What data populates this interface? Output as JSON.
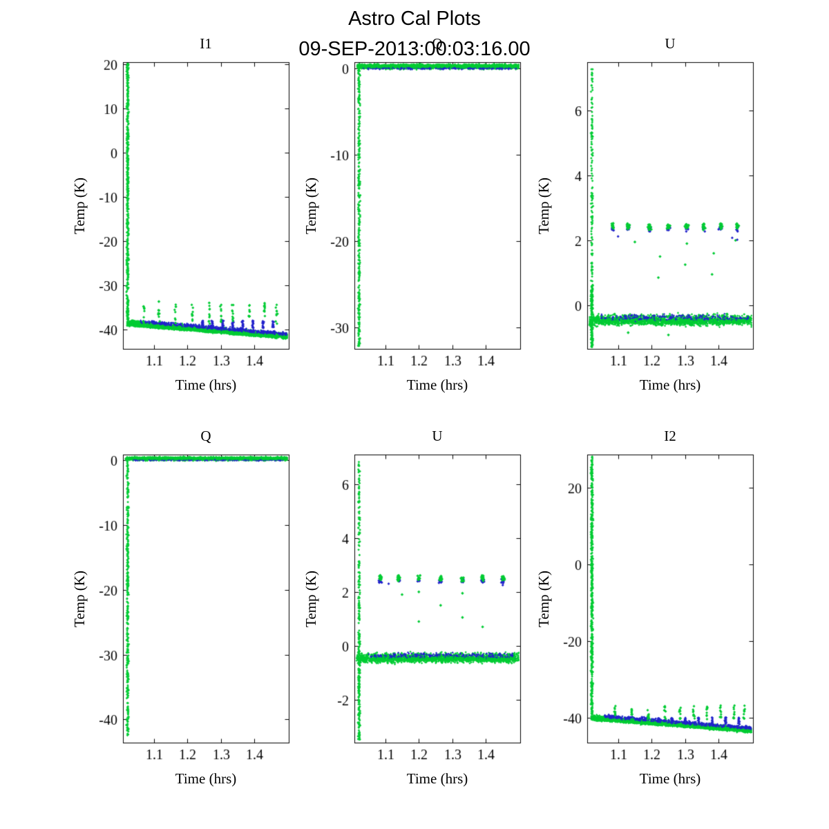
{
  "figure": {
    "title": "Astro Cal Plots",
    "subtitle": "09-SEP-2013:00:03:16.00",
    "background": "#ffffff",
    "colors": {
      "green": "#00cc33",
      "blue": "#2222cc",
      "axis": "#000000",
      "text": "#000000"
    }
  },
  "chart_data": [
    {
      "type": "scatter",
      "title": "I1",
      "xlabel": "Time (hrs)",
      "ylabel": "Temp (K)",
      "xlim": [
        1.008,
        1.502
      ],
      "ylim": [
        -44.3,
        20.5
      ],
      "xticks": [
        1.1,
        1.2,
        1.3,
        1.4
      ],
      "yticks": [
        20,
        10,
        0,
        -10,
        -20,
        -30,
        -40
      ],
      "legend": null,
      "grid": false,
      "features": [
        {
          "kind": "vstrip",
          "c": "g",
          "x": 1.022,
          "jx": 0.0045,
          "y0": -38.6,
          "y1": 20.4,
          "n": 520,
          "r": 1.8
        },
        {
          "kind": "slopeband",
          "c": "g",
          "x0": 1.02,
          "x1": 1.498,
          "ya": -38.4,
          "yb": -41.4,
          "t": 0.9,
          "n": 1500,
          "r": 1.6
        },
        {
          "kind": "slopeband",
          "c": "b",
          "x0": 1.06,
          "x1": 1.498,
          "ya": -38.1,
          "yb": -40.9,
          "t": 0.6,
          "n": 420,
          "r": 1.6
        },
        {
          "kind": "vclusters",
          "c": "b",
          "xs": [
            1.245,
            1.275,
            1.305,
            1.335,
            1.365,
            1.395,
            1.425,
            1.455
          ],
          "y0": -39.6,
          "y1": -37.9,
          "n": 18,
          "r": 1.8
        },
        {
          "kind": "vclusters",
          "c": "g",
          "xs": [
            1.07,
            1.115,
            1.165,
            1.215,
            1.265,
            1.3,
            1.335,
            1.385,
            1.43,
            1.465
          ],
          "y0": -38.6,
          "y1": -34.3,
          "n": 9,
          "r": 2.0
        },
        {
          "kind": "points",
          "c": "g",
          "pts": [
            [
              1.115,
              -33.6
            ],
            [
              1.265,
              -33.9
            ],
            [
              1.43,
              -34.0
            ]
          ],
          "r": 2.2
        },
        {
          "kind": "slopeband",
          "c": "g",
          "x0": 1.02,
          "x1": 1.498,
          "ya": -38.9,
          "yb": -41.8,
          "t": 0.35,
          "n": 700,
          "r": 1.6
        }
      ]
    },
    {
      "type": "scatter",
      "title": "Q",
      "xlabel": "Time (hrs)",
      "ylabel": "Temp (K)",
      "xlim": [
        1.008,
        1.502
      ],
      "ylim": [
        -32.5,
        0.7
      ],
      "xticks": [
        1.1,
        1.2,
        1.3,
        1.4
      ],
      "yticks": [
        0,
        -10,
        -20,
        -30
      ],
      "legend": null,
      "grid": false,
      "features": [
        {
          "kind": "hband",
          "c": "g",
          "x0": 1.016,
          "x1": 1.498,
          "y": 0.18,
          "t": 0.38,
          "n": 1700,
          "r": 1.6
        },
        {
          "kind": "hband",
          "c": "b",
          "x0": 1.03,
          "x1": 1.49,
          "y": 0.02,
          "t": 0.22,
          "n": 260,
          "r": 1.6
        },
        {
          "kind": "hband",
          "c": "g",
          "x0": 1.016,
          "x1": 1.498,
          "y": 0.25,
          "t": 0.25,
          "n": 800,
          "r": 1.6
        },
        {
          "kind": "vstrip",
          "c": "g",
          "x": 1.022,
          "jx": 0.0045,
          "y0": -32.3,
          "y1": 0.2,
          "n": 330,
          "r": 1.8
        }
      ]
    },
    {
      "type": "scatter",
      "title": "U",
      "xlabel": "Time (hrs)",
      "ylabel": "Temp (K)",
      "xlim": [
        1.008,
        1.502
      ],
      "ylim": [
        -1.35,
        7.5
      ],
      "xticks": [
        1.1,
        1.2,
        1.3,
        1.4
      ],
      "yticks": [
        0,
        2,
        4,
        6
      ],
      "legend": null,
      "grid": false,
      "features": [
        {
          "kind": "vstrip",
          "c": "g",
          "x": 1.022,
          "jx": 0.0045,
          "y0": -1.3,
          "y1": 0.6,
          "n": 160,
          "r": 1.8
        },
        {
          "kind": "vstrip",
          "c": "g",
          "x": 1.022,
          "jx": 0.004,
          "y0": 0.6,
          "y1": 7.3,
          "n": 130,
          "r": 1.8
        },
        {
          "kind": "hband",
          "c": "g",
          "x0": 1.014,
          "x1": 1.498,
          "y": -0.46,
          "t": 0.24,
          "n": 1400,
          "r": 1.6
        },
        {
          "kind": "hband",
          "c": "b",
          "x0": 1.05,
          "x1": 1.49,
          "y": -0.4,
          "t": 0.16,
          "n": 240,
          "r": 1.6
        },
        {
          "kind": "hband",
          "c": "g",
          "x0": 1.014,
          "x1": 1.498,
          "y": -0.52,
          "t": 0.14,
          "n": 500,
          "r": 1.6
        },
        {
          "kind": "clusters",
          "c": "b",
          "xs": [
            1.085,
            1.13,
            1.195,
            1.25,
            1.305,
            1.355,
            1.405,
            1.455
          ],
          "y": 2.36,
          "sx": 0.007,
          "sy": 0.12,
          "n": 9,
          "r": 2.0
        },
        {
          "kind": "clusters",
          "c": "g",
          "xs": [
            1.085,
            1.13,
            1.195,
            1.25,
            1.305,
            1.355,
            1.405,
            1.455
          ],
          "y": 2.44,
          "sx": 0.007,
          "sy": 0.15,
          "n": 13,
          "r": 2.2
        },
        {
          "kind": "points",
          "c": "g",
          "pts": [
            [
              1.15,
              1.95
            ],
            [
              1.22,
              0.85
            ],
            [
              1.225,
              1.5
            ],
            [
              1.3,
              1.25
            ],
            [
              1.305,
              1.9
            ],
            [
              1.38,
              0.95
            ],
            [
              1.385,
              1.6
            ],
            [
              1.45,
              2.0
            ],
            [
              1.13,
              -0.85
            ],
            [
              1.25,
              -0.92
            ]
          ],
          "r": 2.2
        },
        {
          "kind": "points",
          "c": "b",
          "pts": [
            [
              1.1,
              2.12
            ],
            [
              1.44,
              2.08
            ],
            [
              1.455,
              2.02
            ]
          ],
          "r": 2.0
        }
      ]
    },
    {
      "type": "scatter",
      "title": "Q",
      "xlabel": "Time (hrs)",
      "ylabel": "Temp (K)",
      "xlim": [
        1.008,
        1.502
      ],
      "ylim": [
        -43.6,
        0.9
      ],
      "xticks": [
        1.1,
        1.2,
        1.3,
        1.4
      ],
      "yticks": [
        0,
        -10,
        -20,
        -30,
        -40
      ],
      "legend": null,
      "grid": false,
      "features": [
        {
          "kind": "hband",
          "c": "g",
          "x0": 1.016,
          "x1": 1.498,
          "y": 0.25,
          "t": 0.4,
          "n": 1700,
          "r": 1.6
        },
        {
          "kind": "hband",
          "c": "b",
          "x0": 1.03,
          "x1": 1.49,
          "y": 0.1,
          "t": 0.22,
          "n": 260,
          "r": 1.6
        },
        {
          "kind": "hband",
          "c": "g",
          "x0": 1.016,
          "x1": 1.498,
          "y": 0.32,
          "t": 0.26,
          "n": 800,
          "r": 1.6
        },
        {
          "kind": "vstrip",
          "c": "g",
          "x": 1.022,
          "jx": 0.0045,
          "y0": -42.6,
          "y1": 0.3,
          "n": 380,
          "r": 1.8
        }
      ]
    },
    {
      "type": "scatter",
      "title": "U",
      "xlabel": "Time (hrs)",
      "ylabel": "Temp (K)",
      "xlim": [
        1.008,
        1.502
      ],
      "ylim": [
        -3.6,
        7.1
      ],
      "xticks": [
        1.1,
        1.2,
        1.3,
        1.4
      ],
      "yticks": [
        -2,
        0,
        2,
        4,
        6
      ],
      "legend": null,
      "grid": false,
      "features": [
        {
          "kind": "vstrip",
          "c": "g",
          "x": 1.022,
          "jx": 0.0045,
          "y0": -3.5,
          "y1": 0.5,
          "n": 200,
          "r": 1.8
        },
        {
          "kind": "vstrip",
          "c": "g",
          "x": 1.022,
          "jx": 0.004,
          "y0": 0.5,
          "y1": 6.9,
          "n": 130,
          "r": 1.8
        },
        {
          "kind": "hband",
          "c": "g",
          "x0": 1.014,
          "x1": 1.498,
          "y": -0.45,
          "t": 0.26,
          "n": 1400,
          "r": 1.6
        },
        {
          "kind": "hband",
          "c": "b",
          "x0": 1.05,
          "x1": 1.49,
          "y": -0.38,
          "t": 0.16,
          "n": 240,
          "r": 1.6
        },
        {
          "kind": "hband",
          "c": "g",
          "x0": 1.014,
          "x1": 1.498,
          "y": -0.52,
          "t": 0.15,
          "n": 500,
          "r": 1.6
        },
        {
          "kind": "clusters",
          "c": "b",
          "xs": [
            1.085,
            1.14,
            1.2,
            1.265,
            1.33,
            1.39,
            1.45
          ],
          "y": 2.42,
          "sx": 0.007,
          "sy": 0.12,
          "n": 9,
          "r": 2.0
        },
        {
          "kind": "clusters",
          "c": "g",
          "xs": [
            1.085,
            1.14,
            1.2,
            1.265,
            1.33,
            1.39,
            1.45
          ],
          "y": 2.5,
          "sx": 0.007,
          "sy": 0.15,
          "n": 13,
          "r": 2.2
        },
        {
          "kind": "points",
          "c": "g",
          "pts": [
            [
              1.15,
              1.9
            ],
            [
              1.2,
              0.9
            ],
            [
              1.265,
              1.5
            ],
            [
              1.33,
              1.05
            ],
            [
              1.33,
              1.95
            ],
            [
              1.39,
              0.7
            ],
            [
              1.2,
              2.0
            ]
          ],
          "r": 2.2
        },
        {
          "kind": "points",
          "c": "b",
          "pts": [
            [
              1.11,
              2.3
            ],
            [
              1.45,
              2.25
            ]
          ],
          "r": 2.0
        }
      ]
    },
    {
      "type": "scatter",
      "title": "I2",
      "xlabel": "Time (hrs)",
      "ylabel": "Temp (K)",
      "xlim": [
        1.008,
        1.502
      ],
      "ylim": [
        -46.5,
        28.6
      ],
      "xticks": [
        1.1,
        1.2,
        1.3,
        1.4
      ],
      "yticks": [
        20,
        0,
        -20,
        -40
      ],
      "legend": null,
      "grid": false,
      "features": [
        {
          "kind": "vstrip",
          "c": "g",
          "x": 1.022,
          "jx": 0.0045,
          "y0": -39.2,
          "y1": 28.3,
          "n": 520,
          "r": 1.8
        },
        {
          "kind": "slopeband",
          "c": "g",
          "x0": 1.02,
          "x1": 1.498,
          "ya": -39.9,
          "yb": -43.2,
          "t": 1.0,
          "n": 1500,
          "r": 1.6
        },
        {
          "kind": "slopeband",
          "c": "b",
          "x0": 1.06,
          "x1": 1.498,
          "ya": -39.6,
          "yb": -42.7,
          "t": 0.7,
          "n": 420,
          "r": 1.6
        },
        {
          "kind": "vclusters",
          "c": "b",
          "xs": [
            1.22,
            1.26,
            1.3,
            1.34,
            1.38,
            1.42,
            1.46
          ],
          "y0": -41.8,
          "y1": -39.9,
          "n": 16,
          "r": 1.8
        },
        {
          "kind": "vclusters",
          "c": "g",
          "xs": [
            1.09,
            1.14,
            1.19,
            1.24,
            1.285,
            1.325,
            1.365,
            1.405,
            1.445,
            1.475
          ],
          "y0": -40.5,
          "y1": -36.8,
          "n": 9,
          "r": 2.0
        },
        {
          "kind": "slopeband",
          "c": "g",
          "x0": 1.02,
          "x1": 1.498,
          "ya": -40.4,
          "yb": -43.6,
          "t": 0.4,
          "n": 700,
          "r": 1.6
        }
      ]
    }
  ]
}
